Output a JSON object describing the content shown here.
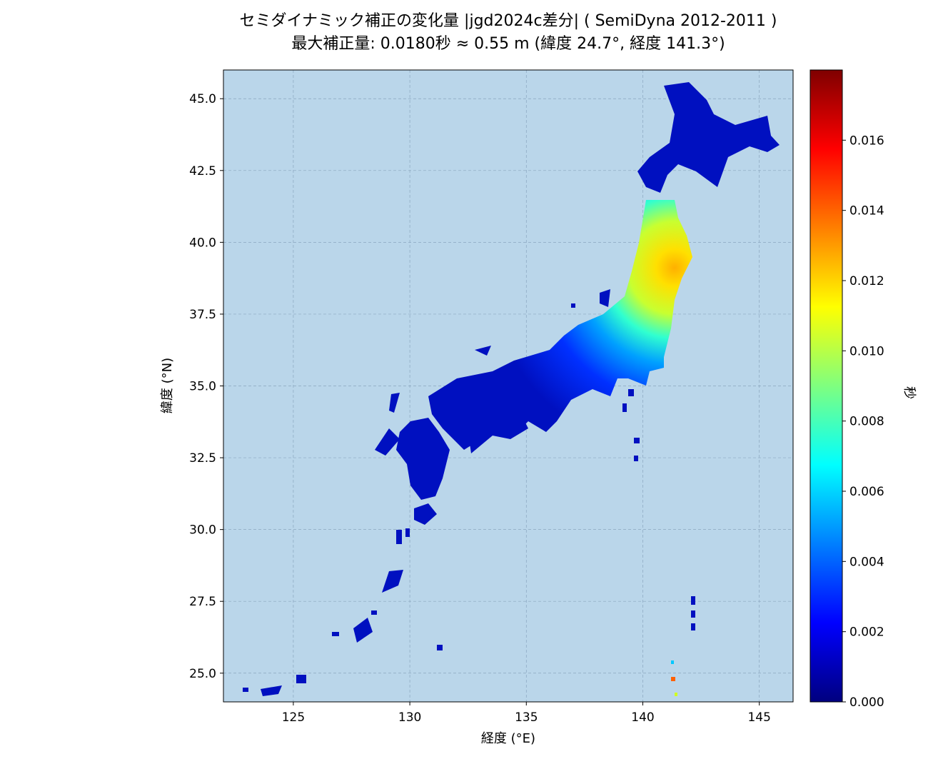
{
  "chart_data": {
    "type": "heatmap-map",
    "title": "セミダイナミック補正の変化量 |jgd2024c差分| ( SemiDyna 2012-2011 )",
    "subtitle": "最大補正量: 0.0180秒 ≈ 0.55 m (緯度 24.7°, 経度 141.3°)",
    "x_label": "経度 (°E)",
    "y_label": "緯度 (°N)",
    "xlim": [
      122.0,
      146.45
    ],
    "ylim": [
      24.0,
      46.0
    ],
    "xticks": [
      125,
      130,
      135,
      140,
      145
    ],
    "yticks": [
      {
        "value": 25,
        "label": "25.0"
      },
      {
        "value": 27.5,
        "label": "27.5"
      },
      {
        "value": 30,
        "label": "30.0"
      },
      {
        "value": 32.5,
        "label": "32.5"
      },
      {
        "value": 35,
        "label": "35.0"
      },
      {
        "value": 37.5,
        "label": "37.5"
      },
      {
        "value": 40,
        "label": "40.0"
      },
      {
        "value": 42.5,
        "label": "42.5"
      },
      {
        "value": 45,
        "label": "45.0"
      }
    ],
    "grid": true,
    "colormap": "jet",
    "colorbar": {
      "label": "秒",
      "lim": [
        0,
        0.018
      ],
      "ticks": [
        {
          "value": 0,
          "label": "0.000"
        },
        {
          "value": 0.002,
          "label": "0.002"
        },
        {
          "value": 0.004,
          "label": "0.004"
        },
        {
          "value": 0.006,
          "label": "0.006"
        },
        {
          "value": 0.008,
          "label": "0.008"
        },
        {
          "value": 0.01,
          "label": "0.010"
        },
        {
          "value": 0.012,
          "label": "0.012"
        },
        {
          "value": 0.014,
          "label": "0.014"
        },
        {
          "value": 0.016,
          "label": "0.016"
        }
      ]
    }
  }
}
